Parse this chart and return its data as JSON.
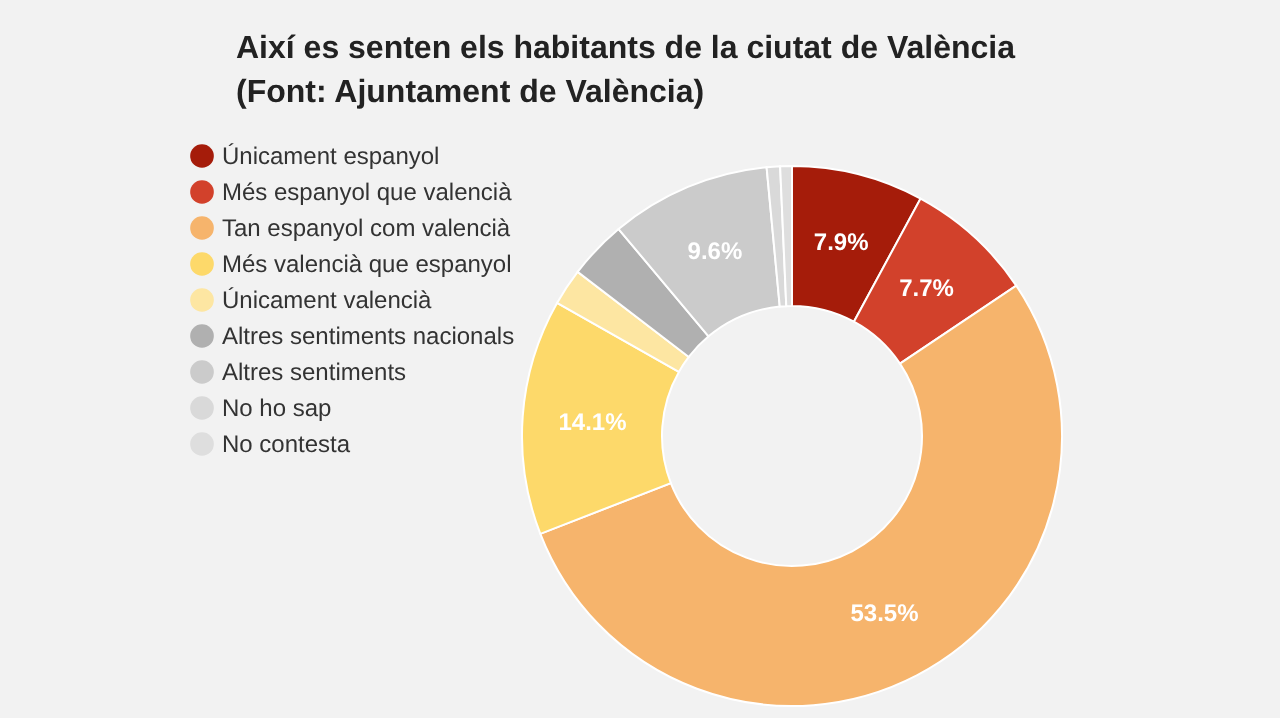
{
  "chart_data": {
    "type": "donut",
    "title": "Així es senten els habitants de la ciutat de València",
    "subtitle": "(Font: Ajuntament de València)",
    "categories": [
      "Únicament espanyol",
      "Més espanyol que valencià",
      "Tan espanyol com valencià",
      "Més valencià que espanyol",
      "Únicament valencià",
      "Altres sentiments nacionals",
      "Altres sentiments",
      "No ho sap",
      "No contesta"
    ],
    "values": [
      7.9,
      7.7,
      53.5,
      14.1,
      2.2,
      3.5,
      9.6,
      0.8,
      0.7
    ],
    "colors": [
      "#a51c0a",
      "#d2412b",
      "#f6b46c",
      "#fdd96a",
      "#fde6a2",
      "#b0b0b0",
      "#cbcbcb",
      "#d9d9d9",
      "#dedede"
    ],
    "value_labels": [
      "7.9%",
      "7.7%",
      "53.5%",
      "14.1%",
      null,
      null,
      "9.6%",
      null,
      null
    ],
    "legend": "left"
  }
}
